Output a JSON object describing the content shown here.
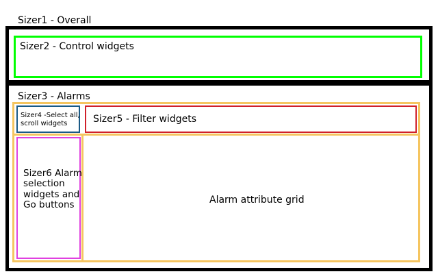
{
  "sizer1": {
    "label": "Sizer1 - Overall"
  },
  "sizer2": {
    "label": "Sizer2 - Control widgets"
  },
  "sizer3": {
    "label": "Sizer3 - Alarms"
  },
  "sizer4": {
    "label": "Sizer4 -Select all, scroll widgets"
  },
  "sizer5": {
    "label": "Sizer5 - Filter widgets"
  },
  "sizer6": {
    "label": "Sizer6 Alarm selection widgets and Go buttons"
  },
  "grid": {
    "label": "Alarm attribute grid"
  },
  "colors": {
    "sizer1": "#000000",
    "sizer2": "#00ff00",
    "sizer3": "#f5c560",
    "sizer4": "#1a5a86",
    "sizer5": "#d0202a",
    "sizer6": "#e040e0"
  }
}
